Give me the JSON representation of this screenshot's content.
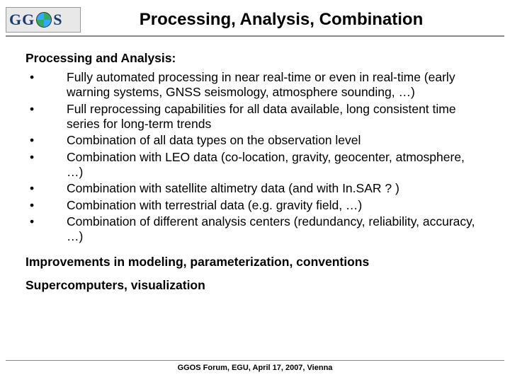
{
  "header": {
    "logo_text_left": "GG",
    "logo_text_right": "S",
    "title": "Processing, Analysis, Combination"
  },
  "content": {
    "section_heading": "Processing and Analysis:",
    "bullets": [
      "Fully automated processing in near real-time or even in real-time (early warning systems, GNSS seismology, atmosphere sounding, …)",
      "Full reprocessing capabilities for all data available, long consistent time series for long-term trends",
      "Combination of all data types on the observation level",
      "Combination with LEO data (co-location, gravity, geocenter, atmosphere, …)",
      "Combination with satellite altimetry data (and with In.SAR ? )",
      "Combination with terrestrial data (e.g. gravity field, …)",
      "Combination of different analysis centers (redundancy, reliability, accuracy, …)"
    ],
    "sub1": "Improvements in modeling, parameterization, conventions",
    "sub2": "Supercomputers, visualization"
  },
  "footer": {
    "text": "GGOS Forum, EGU, April 17, 2007, Vienna"
  },
  "style": {
    "bullet_marker": "•"
  }
}
